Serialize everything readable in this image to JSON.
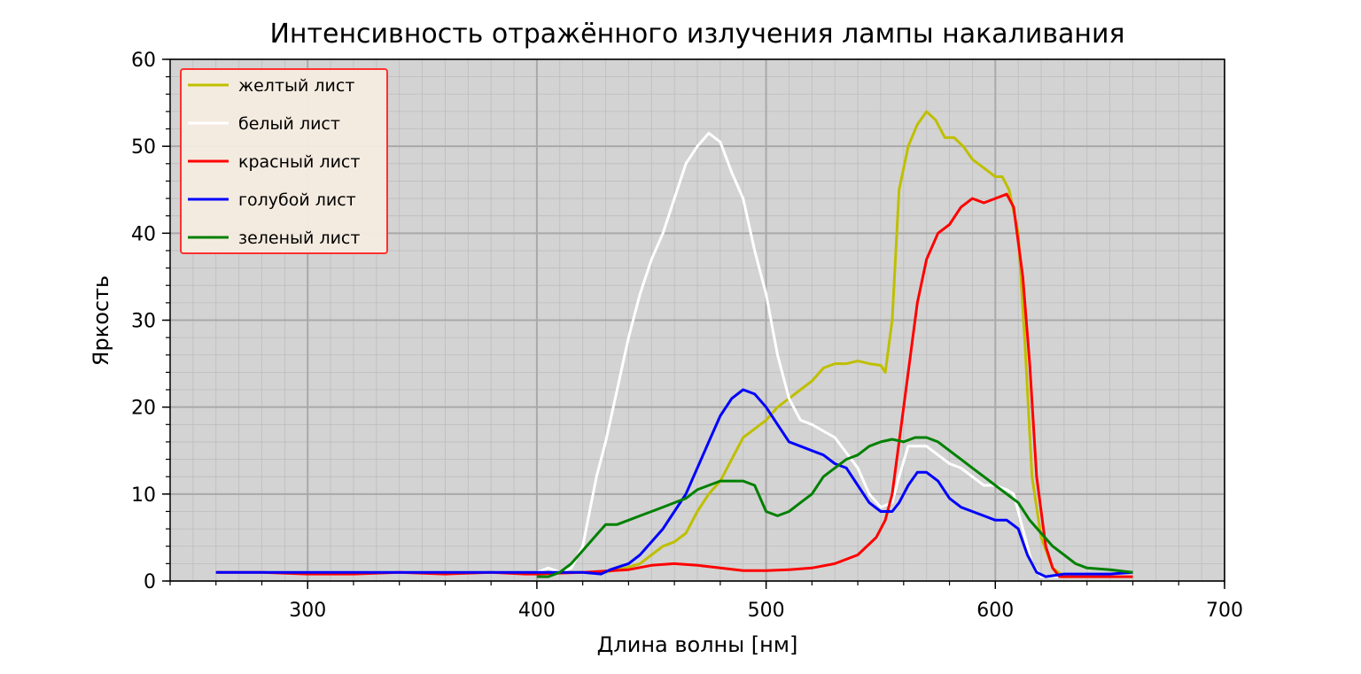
{
  "chart_data": {
    "type": "line",
    "title": "Интенсивность отражённого излучения лампы накаливания",
    "xlabel": "Длина волны [нм]",
    "ylabel": "Яркость",
    "xlim": [
      240,
      700
    ],
    "ylim": [
      0,
      60
    ],
    "xticks": [
      300,
      400,
      500,
      600,
      700
    ],
    "yticks": [
      0,
      10,
      20,
      30,
      40,
      50,
      60
    ],
    "grid": true,
    "minor_grid": true,
    "legend_position": "top-left",
    "background_color": "#d3d3d3",
    "series": [
      {
        "name": "желтый лист",
        "color": "#bfbf00",
        "points": [
          [
            260,
            1
          ],
          [
            300,
            1
          ],
          [
            340,
            1
          ],
          [
            380,
            1
          ],
          [
            400,
            1
          ],
          [
            420,
            1
          ],
          [
            430,
            1
          ],
          [
            440,
            1.6
          ],
          [
            445,
            2
          ],
          [
            450,
            3
          ],
          [
            455,
            4
          ],
          [
            460,
            4.5
          ],
          [
            465,
            5.5
          ],
          [
            470,
            8
          ],
          [
            475,
            10
          ],
          [
            480,
            11.5
          ],
          [
            485,
            14
          ],
          [
            490,
            16.5
          ],
          [
            495,
            17.5
          ],
          [
            500,
            18.5
          ],
          [
            505,
            20
          ],
          [
            510,
            21
          ],
          [
            515,
            22
          ],
          [
            520,
            23
          ],
          [
            525,
            24.5
          ],
          [
            530,
            25
          ],
          [
            535,
            25
          ],
          [
            540,
            25.3
          ],
          [
            545,
            25
          ],
          [
            550,
            24.8
          ],
          [
            552,
            24
          ],
          [
            555,
            30
          ],
          [
            558,
            45
          ],
          [
            562,
            50
          ],
          [
            566,
            52.5
          ],
          [
            570,
            54
          ],
          [
            574,
            53
          ],
          [
            578,
            51
          ],
          [
            582,
            51
          ],
          [
            586,
            50
          ],
          [
            590,
            48.5
          ],
          [
            595,
            47.5
          ],
          [
            600,
            46.5
          ],
          [
            603,
            46.5
          ],
          [
            606,
            45
          ],
          [
            610,
            40
          ],
          [
            613,
            27
          ],
          [
            616,
            12
          ],
          [
            620,
            5
          ],
          [
            625,
            1.5
          ],
          [
            630,
            0.5
          ],
          [
            640,
            0.5
          ],
          [
            660,
            0.5
          ]
        ]
      },
      {
        "name": "белый лист",
        "color": "#ffffff",
        "points": [
          [
            260,
            1
          ],
          [
            300,
            1
          ],
          [
            340,
            1
          ],
          [
            380,
            1
          ],
          [
            400,
            1
          ],
          [
            405,
            1.5
          ],
          [
            410,
            1
          ],
          [
            415,
            1.5
          ],
          [
            420,
            4
          ],
          [
            423,
            8
          ],
          [
            426,
            12
          ],
          [
            430,
            16
          ],
          [
            435,
            22
          ],
          [
            440,
            28
          ],
          [
            445,
            33
          ],
          [
            450,
            37
          ],
          [
            455,
            40
          ],
          [
            460,
            44
          ],
          [
            465,
            48
          ],
          [
            470,
            50
          ],
          [
            475,
            51.5
          ],
          [
            480,
            50.5
          ],
          [
            485,
            47
          ],
          [
            490,
            44
          ],
          [
            495,
            38
          ],
          [
            500,
            33
          ],
          [
            505,
            26
          ],
          [
            510,
            21
          ],
          [
            515,
            18.5
          ],
          [
            520,
            18
          ],
          [
            530,
            16.5
          ],
          [
            540,
            13
          ],
          [
            545,
            10
          ],
          [
            550,
            8.5
          ],
          [
            555,
            9
          ],
          [
            558,
            12
          ],
          [
            562,
            15.5
          ],
          [
            566,
            15.5
          ],
          [
            570,
            15.5
          ],
          [
            575,
            14.5
          ],
          [
            580,
            13.5
          ],
          [
            585,
            13
          ],
          [
            590,
            12
          ],
          [
            595,
            11
          ],
          [
            600,
            11
          ],
          [
            605,
            10.5
          ],
          [
            608,
            10
          ],
          [
            612,
            6
          ],
          [
            616,
            2
          ],
          [
            620,
            0.5
          ],
          [
            625,
            0.5
          ],
          [
            640,
            0.5
          ],
          [
            660,
            0.5
          ]
        ]
      },
      {
        "name": "красный лист",
        "color": "#ff0000",
        "points": [
          [
            260,
            1
          ],
          [
            280,
            1
          ],
          [
            300,
            0.8
          ],
          [
            320,
            0.8
          ],
          [
            340,
            1
          ],
          [
            360,
            0.8
          ],
          [
            380,
            1
          ],
          [
            395,
            0.8
          ],
          [
            400,
            0.8
          ],
          [
            420,
            1
          ],
          [
            440,
            1.3
          ],
          [
            450,
            1.8
          ],
          [
            460,
            2
          ],
          [
            470,
            1.8
          ],
          [
            480,
            1.5
          ],
          [
            490,
            1.2
          ],
          [
            500,
            1.2
          ],
          [
            510,
            1.3
          ],
          [
            520,
            1.5
          ],
          [
            530,
            2
          ],
          [
            540,
            3
          ],
          [
            548,
            5
          ],
          [
            552,
            7
          ],
          [
            555,
            10
          ],
          [
            558,
            16
          ],
          [
            562,
            24
          ],
          [
            566,
            32
          ],
          [
            570,
            37
          ],
          [
            575,
            40
          ],
          [
            580,
            41
          ],
          [
            585,
            43
          ],
          [
            590,
            44
          ],
          [
            595,
            43.5
          ],
          [
            600,
            44
          ],
          [
            605,
            44.5
          ],
          [
            608,
            43
          ],
          [
            612,
            35
          ],
          [
            615,
            25
          ],
          [
            618,
            12
          ],
          [
            622,
            4
          ],
          [
            625,
            1.5
          ],
          [
            628,
            0.5
          ],
          [
            640,
            0.5
          ],
          [
            660,
            0.5
          ]
        ]
      },
      {
        "name": "голубой лист",
        "color": "#0000ff",
        "points": [
          [
            260,
            1
          ],
          [
            300,
            1
          ],
          [
            340,
            1
          ],
          [
            380,
            1
          ],
          [
            400,
            1
          ],
          [
            420,
            1
          ],
          [
            428,
            0.8
          ],
          [
            432,
            1.3
          ],
          [
            440,
            2
          ],
          [
            445,
            3
          ],
          [
            450,
            4.5
          ],
          [
            455,
            6
          ],
          [
            460,
            8
          ],
          [
            465,
            10
          ],
          [
            470,
            13
          ],
          [
            475,
            16
          ],
          [
            480,
            19
          ],
          [
            485,
            21
          ],
          [
            490,
            22
          ],
          [
            495,
            21.5
          ],
          [
            500,
            20
          ],
          [
            505,
            18
          ],
          [
            510,
            16
          ],
          [
            515,
            15.5
          ],
          [
            520,
            15
          ],
          [
            525,
            14.5
          ],
          [
            530,
            13.5
          ],
          [
            535,
            13
          ],
          [
            540,
            11
          ],
          [
            545,
            9
          ],
          [
            550,
            8
          ],
          [
            555,
            8
          ],
          [
            558,
            9
          ],
          [
            562,
            11
          ],
          [
            566,
            12.5
          ],
          [
            570,
            12.5
          ],
          [
            575,
            11.5
          ],
          [
            580,
            9.5
          ],
          [
            585,
            8.5
          ],
          [
            590,
            8
          ],
          [
            595,
            7.5
          ],
          [
            600,
            7
          ],
          [
            605,
            7
          ],
          [
            610,
            6
          ],
          [
            614,
            3
          ],
          [
            618,
            1
          ],
          [
            622,
            0.5
          ],
          [
            630,
            0.8
          ],
          [
            640,
            0.8
          ],
          [
            650,
            0.8
          ],
          [
            660,
            1
          ]
        ]
      },
      {
        "name": "зеленый лист",
        "color": "#008000",
        "points": [
          [
            400,
            0.5
          ],
          [
            405,
            0.5
          ],
          [
            410,
            1
          ],
          [
            415,
            2
          ],
          [
            420,
            3.5
          ],
          [
            425,
            5
          ],
          [
            430,
            6.5
          ],
          [
            435,
            6.5
          ],
          [
            440,
            7
          ],
          [
            445,
            7.5
          ],
          [
            450,
            8
          ],
          [
            455,
            8.5
          ],
          [
            460,
            9
          ],
          [
            465,
            9.5
          ],
          [
            470,
            10.5
          ],
          [
            475,
            11
          ],
          [
            480,
            11.5
          ],
          [
            485,
            11.5
          ],
          [
            490,
            11.5
          ],
          [
            495,
            11
          ],
          [
            500,
            8
          ],
          [
            505,
            7.5
          ],
          [
            510,
            8
          ],
          [
            515,
            9
          ],
          [
            520,
            10
          ],
          [
            525,
            12
          ],
          [
            530,
            13
          ],
          [
            535,
            14
          ],
          [
            540,
            14.5
          ],
          [
            545,
            15.5
          ],
          [
            550,
            16
          ],
          [
            555,
            16.3
          ],
          [
            560,
            16
          ],
          [
            565,
            16.5
          ],
          [
            570,
            16.5
          ],
          [
            575,
            16
          ],
          [
            580,
            15
          ],
          [
            585,
            14
          ],
          [
            590,
            13
          ],
          [
            595,
            12
          ],
          [
            600,
            11
          ],
          [
            605,
            10
          ],
          [
            610,
            9
          ],
          [
            615,
            7
          ],
          [
            620,
            5.5
          ],
          [
            625,
            4
          ],
          [
            630,
            3
          ],
          [
            635,
            2
          ],
          [
            640,
            1.5
          ],
          [
            650,
            1.3
          ],
          [
            660,
            1
          ]
        ]
      }
    ]
  }
}
